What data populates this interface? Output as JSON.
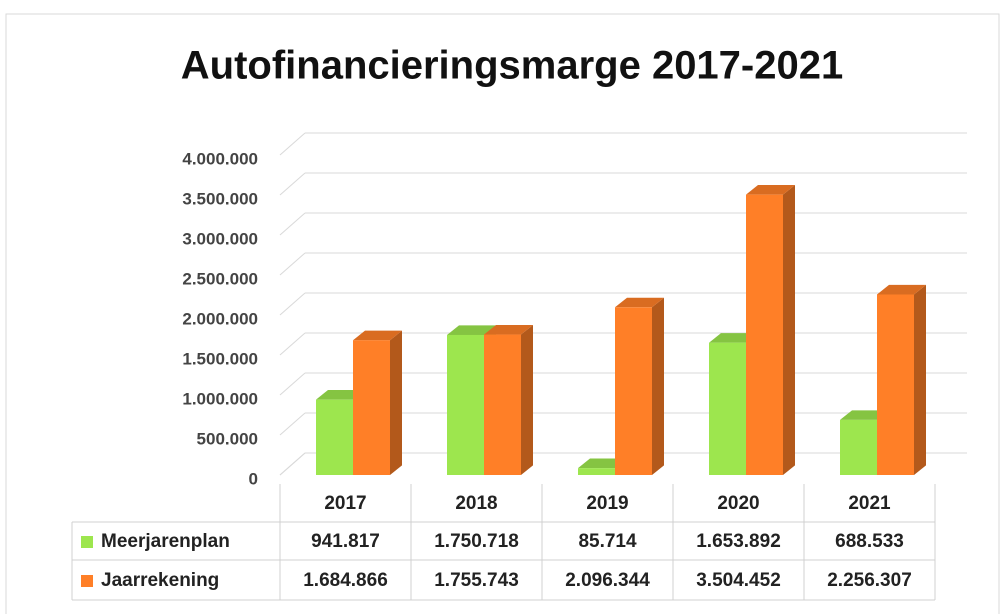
{
  "chart_data": {
    "type": "bar3d",
    "title": "Autofinancieringsmarge 2017-2021",
    "categories": [
      "2017",
      "2018",
      "2019",
      "2020",
      "2021"
    ],
    "series": [
      {
        "name": "Meerjarenplan",
        "color": "#9de64e",
        "values": [
          941817,
          1750718,
          85714,
          1653892,
          688533
        ],
        "value_labels": [
          "941.817",
          "1.750.718",
          "85.714",
          "1.653.892",
          "688.533"
        ]
      },
      {
        "name": "Jaarrekening",
        "color": "#ff7f27",
        "values": [
          1684866,
          1755743,
          2096344,
          3504452,
          2256307
        ],
        "value_labels": [
          "1.684.866",
          "1.755.743",
          "2.096.344",
          "3.504.452",
          "2.256.307"
        ]
      }
    ],
    "ylim": [
      0,
      4000000
    ],
    "yticks": [
      0,
      {
        "value": 500000,
        "label": "500.000"
      },
      {
        "value": 1000000,
        "label": "1.000.000"
      },
      {
        "value": 1500000,
        "label": "1.500.000"
      },
      {
        "value": 2000000,
        "label": "2.000.000"
      },
      {
        "value": 2500000,
        "label": "2.500.000"
      },
      {
        "value": 3000000,
        "label": "3.000.000"
      },
      {
        "value": 3500000,
        "label": "3.500.000"
      },
      {
        "value": 4000000,
        "label": "4.000.000"
      }
    ],
    "grid": true
  }
}
